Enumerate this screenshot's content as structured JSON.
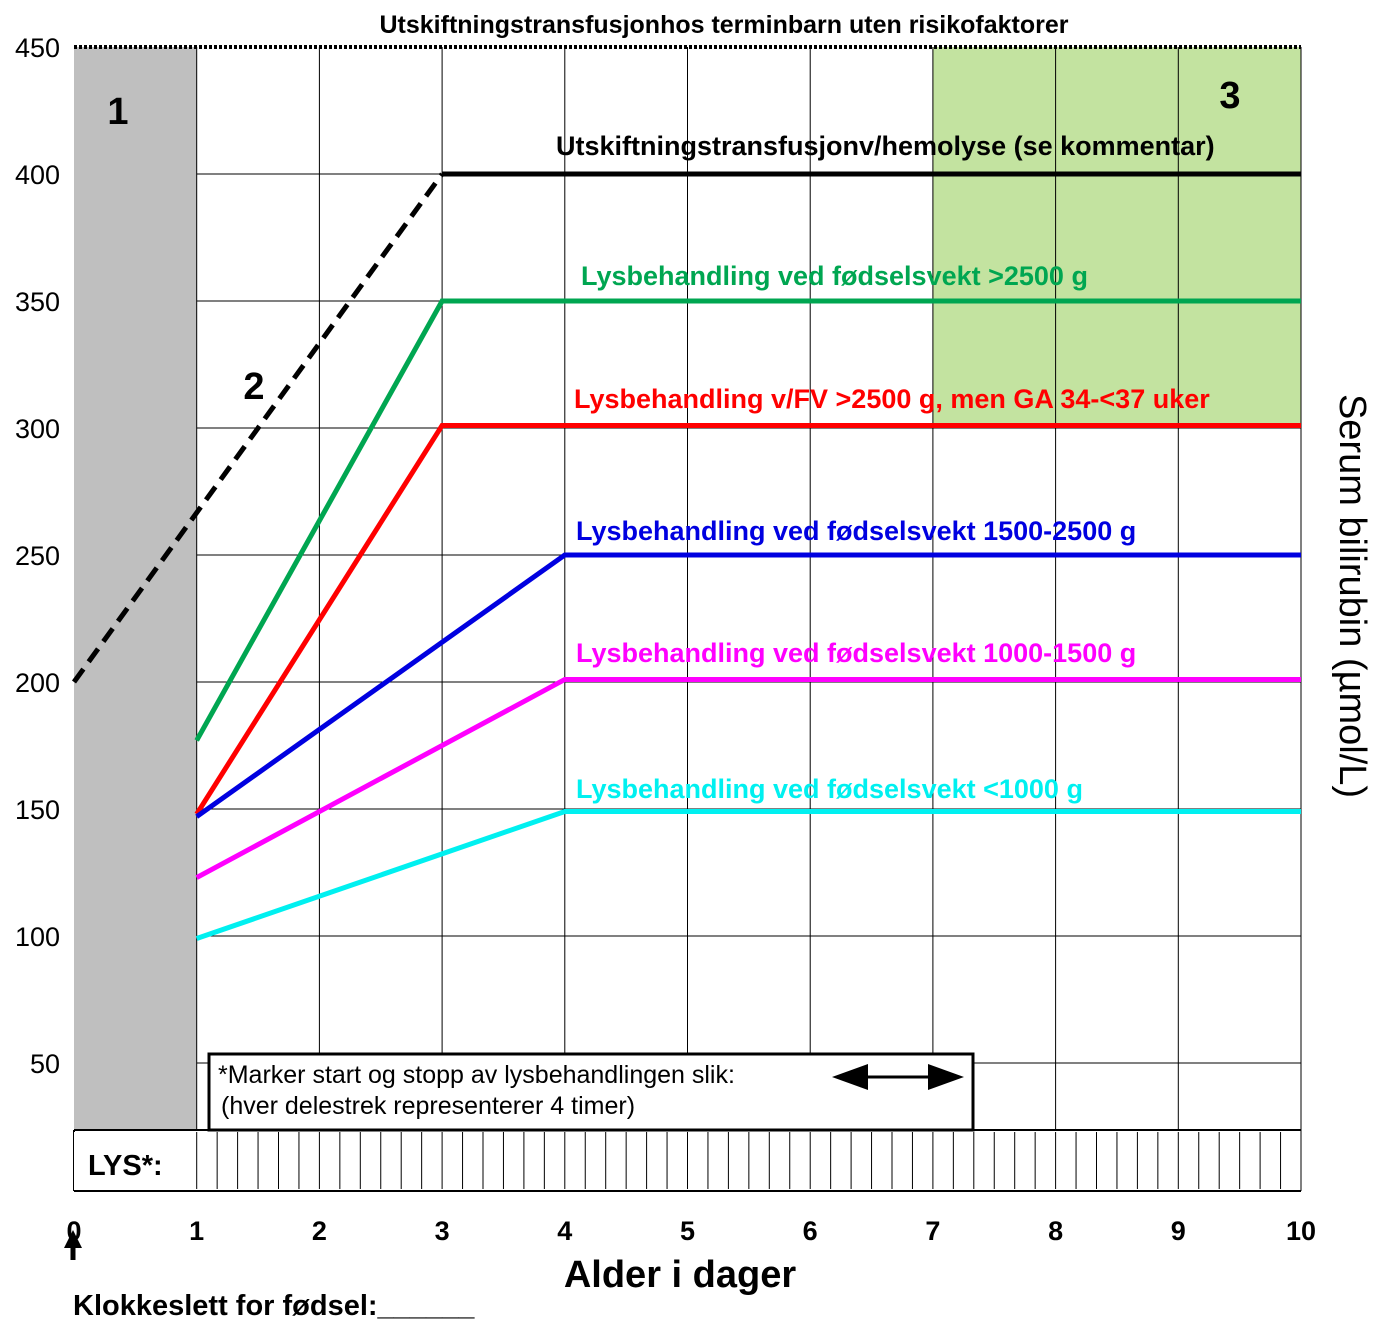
{
  "chart_data": {
    "type": "line",
    "title": "Utskiftningstransfusjonhos terminbarn uten risikofaktorer",
    "xlabel": "Alder i dager",
    "ylabel": "Serum bilirubin (µmol/L)",
    "xlim": [
      0,
      10
    ],
    "ylim": [
      20,
      450
    ],
    "x_ticks": [
      "0",
      "1",
      "2",
      "3",
      "4",
      "5",
      "6",
      "7",
      "8",
      "9",
      "10"
    ],
    "y_ticks": [
      "50",
      "100",
      "150",
      "200",
      "250",
      "300",
      "350",
      "400",
      "450"
    ],
    "grid": true,
    "series": [
      {
        "name": "Utskiftningstransfusjon v/hemolyse (se kommentar)",
        "label_text": "Utskiftningstransfusjonv/hemolyse (se kommentar)",
        "color": "#000000",
        "dashed_x": [
          0,
          3
        ],
        "dashed_y": [
          200,
          400
        ],
        "x": [
          3,
          10
        ],
        "y": [
          400,
          400
        ]
      },
      {
        "name": "Lysbehandling ved fødselsvekt >2500 g",
        "label_text": "Lysbehandling ved fødselsvekt >2500 g",
        "color": "#00a651",
        "x": [
          1,
          3,
          10
        ],
        "y": [
          177,
          350,
          350
        ]
      },
      {
        "name": "Lysbehandling v/FV >2500 g, men GA 34-<37 uker",
        "label_text": "Lysbehandling v/FV >2500 g, men GA 34-<37 uker",
        "color": "#ff0000",
        "x": [
          1,
          3,
          10
        ],
        "y": [
          148,
          301,
          301
        ]
      },
      {
        "name": "Lysbehandling ved fødselsvekt 1500-2500 g",
        "label_text": "Lysbehandling ved fødselsvekt 1500-2500 g",
        "color": "#0000e0",
        "x": [
          1,
          4,
          10
        ],
        "y": [
          147,
          250,
          250
        ]
      },
      {
        "name": "Lysbehandling ved fødselsvekt 1000-1500 g",
        "label_text": "Lysbehandling ved fødselsvekt 1000-1500 g",
        "color": "#ff00ff",
        "x": [
          1,
          4,
          10
        ],
        "y": [
          123,
          201,
          201
        ]
      },
      {
        "name": "Lysbehandling ved fødselsvekt <1000 g",
        "label_text": "Lysbehandling ved fødselsvekt <1000 g",
        "color": "#00f0f0",
        "x": [
          1,
          4,
          10
        ],
        "y": [
          99,
          149,
          149
        ]
      }
    ],
    "zones": [
      {
        "label": "1",
        "x_range": [
          0,
          1
        ],
        "y_range": [
          20,
          450
        ],
        "color": "#bfbfbf"
      },
      {
        "label": "2",
        "color": ""
      },
      {
        "label": "3",
        "x_range": [
          7,
          10
        ],
        "y_range": [
          300,
          450
        ],
        "color": "#c3e3a0"
      }
    ],
    "note_lines": [
      "*Marker start og stopp av lysbehandlingen slik:",
      "(hver delestrek representerer 4 timer)"
    ],
    "lys_label": "LYS*:",
    "birth_time_label": "Klokkeslett for fødsel:______"
  }
}
